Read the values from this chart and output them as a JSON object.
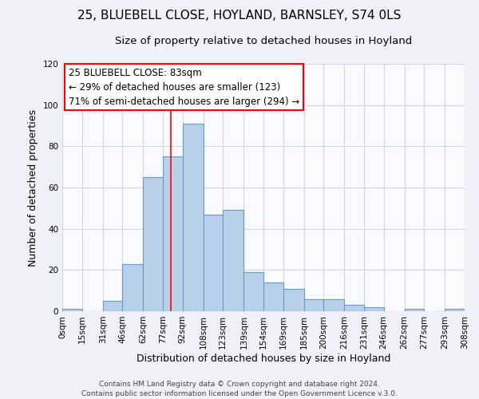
{
  "title": "25, BLUEBELL CLOSE, HOYLAND, BARNSLEY, S74 0LS",
  "subtitle": "Size of property relative to detached houses in Hoyland",
  "xlabel": "Distribution of detached houses by size in Hoyland",
  "ylabel": "Number of detached properties",
  "bin_labels": [
    "0sqm",
    "15sqm",
    "31sqm",
    "46sqm",
    "62sqm",
    "77sqm",
    "92sqm",
    "108sqm",
    "123sqm",
    "139sqm",
    "154sqm",
    "169sqm",
    "185sqm",
    "200sqm",
    "216sqm",
    "231sqm",
    "246sqm",
    "262sqm",
    "277sqm",
    "293sqm",
    "308sqm"
  ],
  "bar_values": [
    1,
    0,
    5,
    23,
    65,
    75,
    91,
    47,
    49,
    19,
    14,
    11,
    6,
    6,
    3,
    2,
    0,
    1,
    0,
    1
  ],
  "bar_color": "#b8d0ea",
  "bar_edge_color": "#6699cc",
  "ylim": [
    0,
    120
  ],
  "yticks": [
    0,
    20,
    40,
    60,
    80,
    100,
    120
  ],
  "boundaries": [
    0,
    15,
    31,
    46,
    62,
    77,
    92,
    108,
    123,
    139,
    154,
    169,
    185,
    200,
    216,
    231,
    246,
    262,
    277,
    293,
    308
  ],
  "redline_x": 83,
  "annotation_title": "25 BLUEBELL CLOSE: 83sqm",
  "annotation_line1": "← 29% of detached houses are smaller (123)",
  "annotation_line2": "71% of semi-detached houses are larger (294) →",
  "footer_line1": "Contains HM Land Registry data © Crown copyright and database right 2024.",
  "footer_line2": "Contains public sector information licensed under the Open Government Licence v.3.0.",
  "background_color": "#eef2f8",
  "plot_background": "#f8fafd",
  "grid_color": "#d0d8e8",
  "title_fontsize": 11,
  "subtitle_fontsize": 9.5,
  "axis_label_fontsize": 9,
  "tick_fontsize": 7.5,
  "annotation_fontsize": 8.5,
  "footer_fontsize": 6.5
}
